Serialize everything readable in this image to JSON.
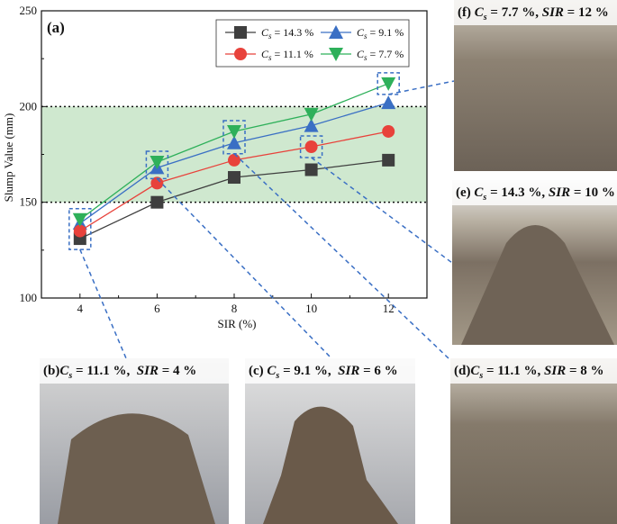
{
  "chart_data": {
    "type": "line",
    "panel_label": "(a)",
    "xlabel": "SIR (%)",
    "ylabel": "Slump Value (mm)",
    "x": [
      4,
      6,
      8,
      10,
      12
    ],
    "xticks": [
      "4",
      "6",
      "8",
      "10",
      "12"
    ],
    "yticks": [
      "100",
      "150",
      "200",
      "250"
    ],
    "xlim": [
      3,
      13
    ],
    "ylim": [
      100,
      250
    ],
    "band": [
      150,
      200
    ],
    "band_color": "#cfe8cf",
    "grid": false,
    "legend_position": "top-right",
    "series": [
      {
        "name": "C_s = 14.3 %",
        "legend_sub": "s",
        "legend_val": " = 14.3 %",
        "color": "#3f3f3f",
        "marker": "square",
        "values": [
          131,
          150,
          163,
          167,
          172
        ]
      },
      {
        "name": "C_s = 9.1 %",
        "legend_sub": "s",
        "legend_val": " = 9.1 %",
        "color": "#3a6fc4",
        "marker": "triangle-up",
        "values": [
          139,
          168,
          181,
          190,
          202
        ]
      },
      {
        "name": "C_s = 11.1 %",
        "legend_sub": "s",
        "legend_val": " = 11.1 %",
        "color": "#e8423b",
        "marker": "circle",
        "values": [
          135,
          160,
          172,
          179,
          187
        ]
      },
      {
        "name": "C_s = 7.7 %",
        "legend_sub": "s",
        "legend_val": " = 7.7 %",
        "color": "#2eb05a",
        "marker": "triangle-down",
        "values": [
          141,
          171,
          187,
          196,
          212
        ]
      }
    ]
  },
  "photos": {
    "b": {
      "label": "(b)",
      "cs": "11.1",
      "sir": "4"
    },
    "c": {
      "label": "(c)",
      "cs": "9.1",
      "sir": "6"
    },
    "d": {
      "label": "(d)",
      "cs": "11.1",
      "sir": "8"
    },
    "e": {
      "label": "(e)",
      "cs": "14.3",
      "sir": "10"
    },
    "f": {
      "label": "(f)",
      "cs": "7.7",
      "sir": "12"
    }
  }
}
